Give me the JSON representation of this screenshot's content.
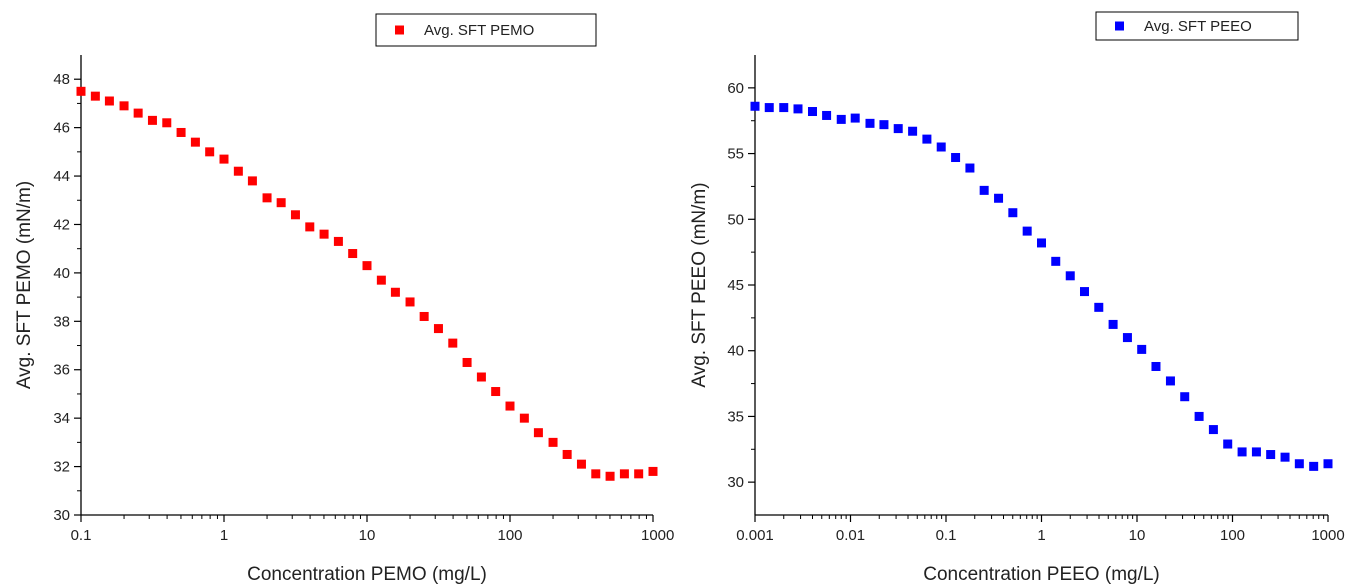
{
  "chart_data": [
    {
      "type": "scatter",
      "xlabel": "Concentration PEMO (mg/L)",
      "ylabel": "Avg. SFT PEMO (mN/m)",
      "x_scale": "log",
      "xlim": [
        0.1,
        1000
      ],
      "ylim": [
        30,
        49
      ],
      "x_ticks": [
        0.1,
        1,
        10,
        100,
        1000
      ],
      "x_tick_labels": [
        "0.1",
        "1",
        "10",
        "100",
        "1000"
      ],
      "y_ticks": [
        30,
        32,
        34,
        36,
        38,
        40,
        42,
        44,
        46,
        48
      ],
      "y_tick_labels": [
        "30",
        "32",
        "34",
        "36",
        "38",
        "40",
        "42",
        "44",
        "46",
        "48"
      ],
      "grid": false,
      "legend_position": "top",
      "series": [
        {
          "name": "Avg. SFT PEMO",
          "color": "#ff0000",
          "marker": "square",
          "x": [
            0.1,
            0.126,
            0.158,
            0.2,
            0.251,
            0.316,
            0.398,
            0.501,
            0.631,
            0.794,
            1.0,
            1.26,
            1.58,
            2.0,
            2.51,
            3.16,
            3.98,
            5.01,
            6.31,
            7.94,
            10.0,
            12.6,
            15.8,
            20.0,
            25.1,
            31.6,
            39.8,
            50.1,
            63.1,
            79.4,
            100,
            126,
            158,
            200,
            251,
            316,
            398,
            501,
            631,
            794,
            1000
          ],
          "y": [
            47.5,
            47.3,
            47.1,
            46.9,
            46.6,
            46.3,
            46.2,
            45.8,
            45.4,
            45.0,
            44.7,
            44.2,
            43.8,
            43.1,
            42.9,
            42.4,
            41.9,
            41.6,
            41.3,
            40.8,
            40.3,
            39.7,
            39.2,
            38.8,
            38.2,
            37.7,
            37.1,
            36.3,
            35.7,
            35.1,
            34.5,
            34.0,
            33.4,
            33.0,
            32.5,
            32.1,
            31.7,
            31.6,
            31.7,
            31.7,
            31.8
          ]
        }
      ]
    },
    {
      "type": "scatter",
      "xlabel": "Concentration PEEO (mg/L)",
      "ylabel": "Avg. SFT PEEO (mN/m)",
      "x_scale": "log",
      "xlim": [
        0.001,
        1000
      ],
      "ylim": [
        27.5,
        62.5
      ],
      "x_ticks": [
        0.001,
        0.01,
        0.1,
        1,
        10,
        100,
        1000
      ],
      "x_tick_labels": [
        "0.001",
        "0.01",
        "0.1",
        "1",
        "10",
        "100",
        "1000"
      ],
      "y_ticks": [
        30,
        35,
        40,
        45,
        50,
        55,
        60
      ],
      "y_tick_labels": [
        "30",
        "35",
        "40",
        "45",
        "50",
        "55",
        "60"
      ],
      "grid": false,
      "legend_position": "top-right",
      "series": [
        {
          "name": "Avg. SFT PEEO",
          "color": "#0000ff",
          "marker": "square",
          "x": [
            0.001,
            0.00141,
            0.002,
            0.00282,
            0.004,
            0.00562,
            0.008,
            0.0112,
            0.016,
            0.0224,
            0.0316,
            0.0447,
            0.0631,
            0.0891,
            0.126,
            0.178,
            0.251,
            0.355,
            0.501,
            0.708,
            1.0,
            1.41,
            2.0,
            2.82,
            3.98,
            5.62,
            7.94,
            11.2,
            15.8,
            22.4,
            31.6,
            44.7,
            63.1,
            89.1,
            126,
            178,
            251,
            355,
            501,
            708,
            1000
          ],
          "y": [
            58.6,
            58.5,
            58.5,
            58.4,
            58.2,
            57.9,
            57.6,
            57.7,
            57.3,
            57.2,
            56.9,
            56.7,
            56.1,
            55.5,
            54.7,
            53.9,
            52.2,
            51.6,
            50.5,
            49.1,
            48.2,
            46.8,
            45.7,
            44.5,
            43.3,
            42.0,
            41.0,
            40.1,
            38.8,
            37.7,
            36.5,
            35.0,
            34.0,
            32.9,
            32.3,
            32.3,
            32.1,
            31.9,
            31.4,
            31.2,
            31.4
          ]
        }
      ]
    }
  ]
}
